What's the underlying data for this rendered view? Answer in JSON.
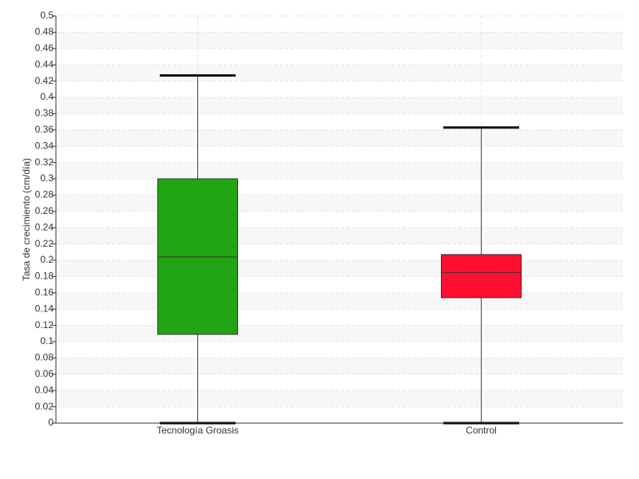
{
  "chart_data": {
    "type": "box",
    "y_label": "Tasa de crecimiento (cm/día)",
    "categories": [
      "Tecnología Groasis",
      "Control"
    ],
    "boxes": [
      {
        "min": 0,
        "q1": 0.109,
        "median": 0.204,
        "q3": 0.3,
        "max": 0.427,
        "color": "#22a512"
      },
      {
        "min": 0,
        "q1": 0.154,
        "median": 0.185,
        "q3": 0.207,
        "max": 0.363,
        "color": "#ff1030"
      }
    ],
    "ylim": [
      0,
      0.5
    ],
    "yticks": [
      0,
      0.02,
      0.04,
      0.06,
      0.08,
      0.1,
      0.12,
      0.14,
      0.16,
      0.18,
      0.2,
      0.22,
      0.24,
      0.26,
      0.28,
      0.3,
      0.32,
      0.34,
      0.36,
      0.38,
      0.4,
      0.42,
      0.44,
      0.46,
      0.48,
      0.5
    ],
    "grid": true
  }
}
